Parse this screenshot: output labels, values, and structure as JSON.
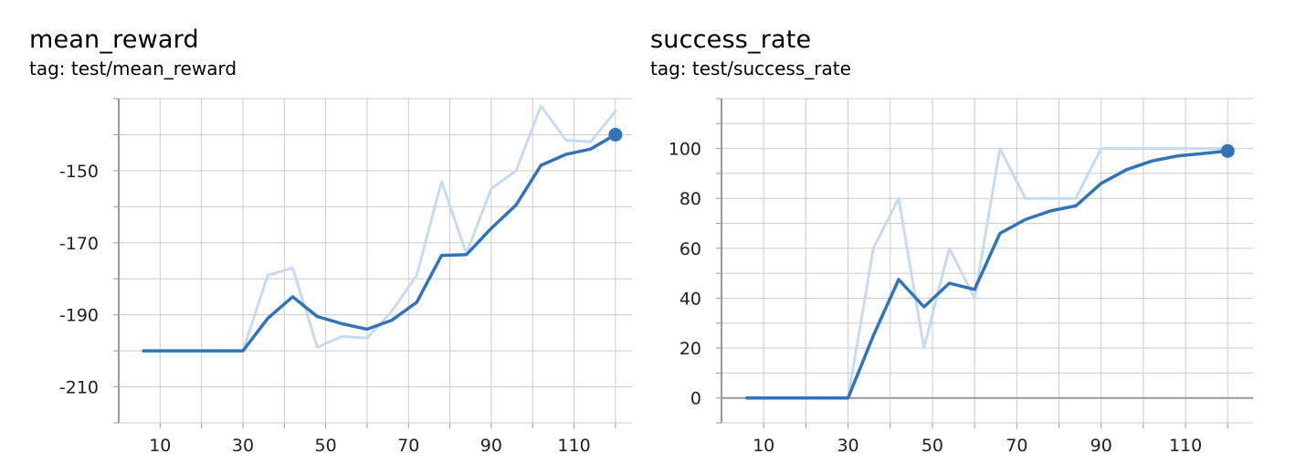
{
  "chart_data": [
    {
      "type": "line",
      "title": "mean_reward",
      "subtitle": "tag: test/mean_reward",
      "xlabel": "",
      "ylabel": "",
      "xlim": [
        0,
        124
      ],
      "ylim": [
        -220,
        -130
      ],
      "xticks": [
        10,
        30,
        50,
        70,
        90,
        110
      ],
      "yticks": [
        -150,
        -170,
        -190,
        -210
      ],
      "grid": true,
      "colors": {
        "raw": "#c6dbef",
        "smoothed": "#3174b8"
      },
      "series": [
        {
          "role": "raw",
          "x": [
            6,
            12,
            18,
            24,
            30,
            36,
            42,
            48,
            54,
            60,
            66,
            72,
            78,
            84,
            90,
            96,
            102,
            108,
            114,
            120
          ],
          "values": [
            -200,
            -200,
            -200,
            -200,
            -200,
            -179,
            -177,
            -199,
            -196,
            -196.5,
            -189,
            -179,
            -153,
            -173,
            -155,
            -150,
            -132,
            -141.5,
            -142,
            -133.5
          ]
        },
        {
          "role": "smoothed",
          "x": [
            6,
            12,
            18,
            24,
            30,
            36,
            42,
            48,
            54,
            60,
            66,
            72,
            78,
            84,
            90,
            96,
            102,
            108,
            114,
            120
          ],
          "values": [
            -200,
            -200,
            -200,
            -200,
            -200,
            -191,
            -185,
            -190.5,
            -192.5,
            -194,
            -191.5,
            -186.5,
            -173.5,
            -173.3,
            -166,
            -159.5,
            -148.5,
            -145.5,
            -144,
            -140
          ]
        }
      ]
    },
    {
      "type": "line",
      "title": "success_rate",
      "subtitle": "tag: test/success_rate",
      "xlabel": "",
      "ylabel": "",
      "xlim": [
        0,
        126
      ],
      "ylim": [
        -10,
        120
      ],
      "xticks": [
        10,
        30,
        50,
        70,
        90,
        110
      ],
      "yticks": [
        0,
        20,
        40,
        60,
        80,
        100
      ],
      "grid": true,
      "colors": {
        "raw": "#c6dbef",
        "smoothed": "#3174b8"
      },
      "series": [
        {
          "role": "raw",
          "x": [
            6,
            12,
            18,
            24,
            30,
            36,
            42,
            48,
            54,
            60,
            66,
            72,
            78,
            84,
            90,
            96,
            102,
            108,
            114,
            120
          ],
          "values": [
            0,
            0,
            0,
            0,
            0,
            60,
            80,
            20,
            60,
            40,
            100,
            80,
            80,
            80,
            100,
            100,
            100,
            100,
            100,
            100
          ]
        },
        {
          "role": "smoothed",
          "x": [
            6,
            12,
            18,
            24,
            30,
            36,
            42,
            48,
            54,
            60,
            66,
            72,
            78,
            84,
            90,
            96,
            102,
            108,
            114,
            120
          ],
          "values": [
            0,
            0,
            0,
            0,
            0,
            25,
            47.5,
            36.5,
            46,
            43.5,
            66,
            71.5,
            75,
            77,
            86,
            91.5,
            95,
            97,
            98,
            99
          ]
        }
      ]
    }
  ]
}
